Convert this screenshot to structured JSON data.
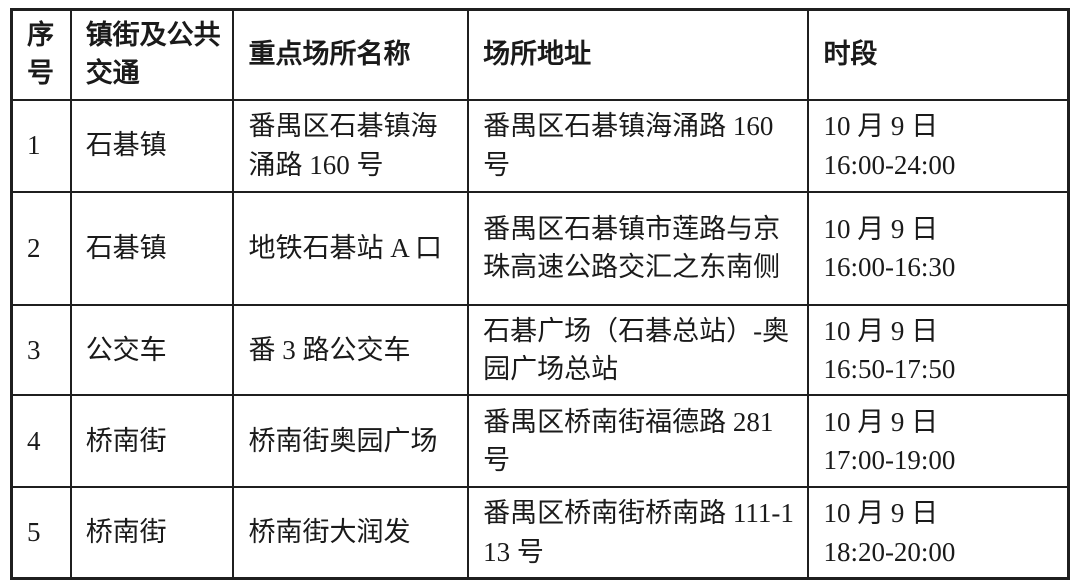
{
  "page": {
    "background": "#ffffff",
    "border_color": "#1f1f1f",
    "text_color": "#1a1a1a"
  },
  "table": {
    "headers": {
      "no": "序号",
      "area": "镇街及公共交通",
      "place": "重点场所名称",
      "address": "场所地址",
      "time": "时段"
    },
    "rows": [
      {
        "no": "1",
        "area": "石碁镇",
        "place": "番禺区石碁镇海涌路 160 号",
        "address": "番禺区石碁镇海涌路 160 号",
        "date": "10 月 9 日",
        "time": "16:00-24:00"
      },
      {
        "no": "2",
        "area": "石碁镇",
        "place": "地铁石碁站 A 口",
        "address": "番禺区石碁镇市莲路与京珠高速公路交汇之东南侧",
        "date": "10 月 9 日",
        "time": "16:00-16:30"
      },
      {
        "no": "3",
        "area": "公交车",
        "place": "番 3 路公交车",
        "address": "石碁广场（石碁总站）-奥园广场总站",
        "date": "10 月 9 日",
        "time": "16:50-17:50"
      },
      {
        "no": "4",
        "area": "桥南街",
        "place": "桥南街奥园广场",
        "address": "番禺区桥南街福德路 281 号",
        "date": "10 月 9 日",
        "time": "17:00-19:00"
      },
      {
        "no": "5",
        "area": "桥南街",
        "place": "桥南街大润发",
        "address": "番禺区桥南街桥南路 111-113 号",
        "date": "10 月 9 日",
        "time": "18:20-20:00"
      }
    ]
  }
}
